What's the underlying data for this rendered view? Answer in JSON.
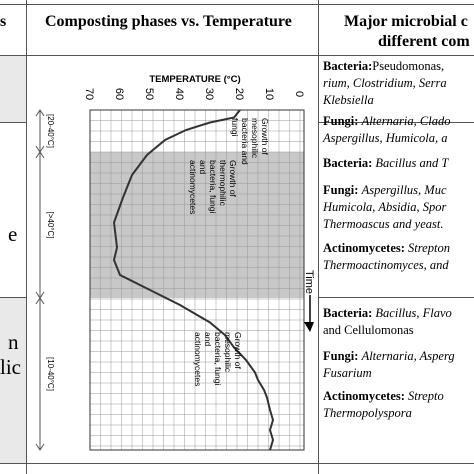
{
  "header": {
    "col_left": "s",
    "col_middle": "Composting phases vs. Temperature",
    "col_right_line1": "Major microbial c",
    "col_right_line2": "different com"
  },
  "left_cells": {
    "row2": "e",
    "row3_line1": "n",
    "row3_line2": "lic"
  },
  "chart_data": {
    "type": "line",
    "title": "",
    "xlabel": "TEMPERATURE (°C)",
    "ylabel": "",
    "x_ticks": [
      "0",
      "10",
      "20",
      "30",
      "40",
      "50",
      "60",
      "70"
    ],
    "xlim": [
      0,
      70
    ],
    "series": [
      {
        "values_x": [
          20,
          22,
          30,
          38,
          45,
          51,
          56,
          59,
          62,
          61,
          62,
          60,
          50,
          40,
          30,
          25,
          22,
          18,
          15,
          14,
          12,
          11,
          10,
          9,
          10,
          9,
          10
        ],
        "values_y": [
          0,
          3,
          5,
          8,
          12,
          18,
          26,
          35,
          45,
          55,
          60,
          66,
          72,
          78,
          85,
          90,
          95,
          100,
          105,
          108,
          112,
          115,
          120,
          124,
          128,
          132,
          136
        ]
      }
    ],
    "phases": [
      {
        "range": "[20-40°C]",
        "label": "Growth of mesophilic bacteria and fungi"
      },
      {
        "range": "[>40°C]",
        "label": "Growth of thermophilic bacteria, fungi and actinomycetes"
      },
      {
        "range": "[10-40°C]",
        "label": "Growth of mesophilic bacteria, fungi and actinomycetes"
      }
    ],
    "time_label": "Time",
    "shaded_phase_color": "#c8c8c8",
    "grid": true
  },
  "microbes": {
    "row1": {
      "bacteria_label": "Bacteria:",
      "bacteria_text1": "Pseudomonas,",
      "bacteria_text2": "rium, Clostridium, Serra",
      "bacteria_text3": "Klebsiella",
      "fungi_label": "Fungi:",
      "fungi_text1": "Alternaria, Clado",
      "fungi_text2": "Aspergillus, Humicola, a"
    },
    "row2": {
      "bacteria_label": "Bacteria:",
      "bacteria_text1": "Bacillus and T",
      "fungi_label": "Fungi:",
      "fungi_text1": "Aspergillus, Muc",
      "fungi_text2": "Humicola, Absidia, Spor",
      "fungi_text3": "Thermoascus and yeast.",
      "actino_label": "Actinomycetes:",
      "actino_text1": "Strepton",
      "actino_text2": "Thermoactinomyces, and"
    },
    "row3": {
      "bacteria_label": "Bacteria:",
      "bacteria_text1": "Bacillus, Flavo",
      "bacteria_text2": "and Cellulomonas",
      "fungi_label": "Fungi:",
      "fungi_text1": "Alternaria, Asperg",
      "fungi_text2": "Fusarium",
      "actino_label": "Actinomycetes:",
      "actino_text1": "Strepto",
      "actino_text2": "Thermopolyspora"
    }
  }
}
